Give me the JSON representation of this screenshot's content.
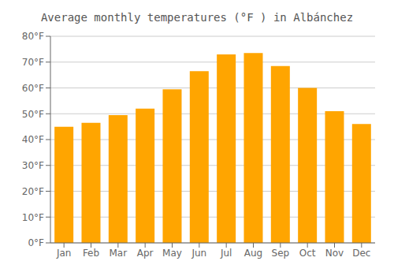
{
  "chart_data": {
    "type": "bar",
    "title": "Average monthly temperatures (°F ) in Albánchez",
    "categories": [
      "Jan",
      "Feb",
      "Mar",
      "Apr",
      "May",
      "Jun",
      "Jul",
      "Aug",
      "Sep",
      "Oct",
      "Nov",
      "Dec"
    ],
    "values": [
      45,
      46.5,
      49.5,
      52,
      59.5,
      66.5,
      73,
      73.5,
      68.5,
      60,
      51,
      46
    ],
    "color": "#FFA500",
    "ylim": [
      0,
      80
    ],
    "yticks": [
      {
        "value": 0,
        "label": "0°F"
      },
      {
        "value": 10,
        "label": "10°F"
      },
      {
        "value": 20,
        "label": "20°F"
      },
      {
        "value": 30,
        "label": "30°F"
      },
      {
        "value": 40,
        "label": "40°F"
      },
      {
        "value": 50,
        "label": "50°F"
      },
      {
        "value": 60,
        "label": "60°F"
      },
      {
        "value": 70,
        "label": "70°F"
      },
      {
        "value": 80,
        "label": "80°F"
      }
    ],
    "grid": true
  }
}
